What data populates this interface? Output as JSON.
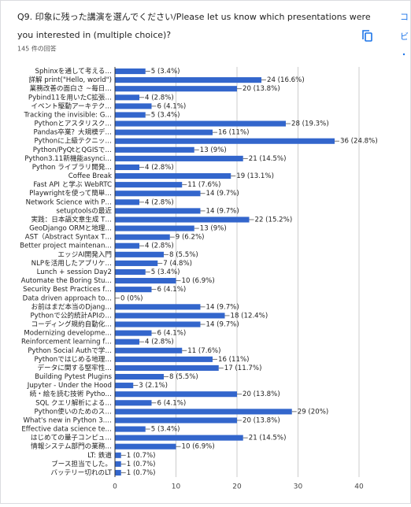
{
  "chart_data": {
    "type": "hbar",
    "title": [
      "Q9. 印象に残った講演を選んでください/Please let us know which presentations were",
      "you interested in (multiple choice)?"
    ],
    "subtitle": "145 件の回答",
    "side_texts": [
      "コ",
      "ビ"
    ],
    "color": "#3366cc",
    "categories": [
      "Sphinxを通して考える…",
      "詳解 print(\"Hello, world\")",
      "業務改善の面白さ ~毎日…",
      "Pybind11を用いたC拡張…",
      "イベント駆動アーキテク…",
      "Tracking the invisible: G…",
      "Pythonとアスタリスク…",
      "Pandas卒業？大規模デ…",
      "Pythonに上級テクニッ…",
      "Python/PyQtとQGISで…",
      "Python3.11新機能asynci…",
      "Python ライブラリ開発…",
      "Coffee Break",
      "Fast API と学ぶ WebRTC",
      "Playwrightを使って簡単…",
      "Network Science with P…",
      "setuptoolsの最近",
      "実践：日本語文章生成 T…",
      "GeoDjango ORMと地理…",
      "AST（Abstract Syntax T…",
      "Better project maintenan…",
      "エッジAI開発入門",
      "NLPを活用したアプリケ…",
      "Lunch + session Day2",
      "Automate the Boring Stu…",
      "Security Best Practices f…",
      "Data driven approach to…",
      "お前はまだ本当のDjang…",
      "Pythonで公的統計APIの…",
      "コーディング規約自動化…",
      "Modernizing developme…",
      "Reinforcement learning f…",
      "Python Social Authで学…",
      "Pythonではじめる地理…",
      "データに関する堅牢性…",
      "Building Pytest Plugins",
      "Jupyter - Under the Hood",
      "続・絵を読む技術 Pytho…",
      "SQL クエリ解析による…",
      "Python使いのためのス…",
      "What's new in Python 3.…",
      "Effective data science te…",
      "はじめての量子コンピュ…",
      "情報システム部門の業務…",
      "LT: 鉄道",
      "ブース担当でした。",
      "バッテリー切れのLT"
    ],
    "values": [
      5,
      24,
      20,
      4,
      6,
      5,
      28,
      16,
      36,
      13,
      21,
      4,
      19,
      11,
      14,
      4,
      14,
      22,
      13,
      9,
      4,
      8,
      7,
      5,
      10,
      6,
      0,
      14,
      18,
      14,
      6,
      4,
      11,
      16,
      17,
      8,
      3,
      20,
      6,
      29,
      20,
      5,
      21,
      10,
      1,
      1,
      1
    ],
    "value_labels": [
      "5 (3.4%)",
      "24 (16.6%)",
      "20 (13.8%)",
      "4 (2.8%)",
      "6 (4.1%)",
      "5 (3.4%)",
      "28 (19.3%)",
      "16 (11%)",
      "36 (24.8%)",
      "13 (9%)",
      "21 (14.5%)",
      "4 (2.8%)",
      "19 (13.1%)",
      "11 (7.6%)",
      "14 (9.7%)",
      "4 (2.8%)",
      "14 (9.7%)",
      "22 (15.2%)",
      "13 (9%)",
      "9 (6.2%)",
      "4 (2.8%)",
      "8 (5.5%)",
      "7 (4.8%)",
      "5 (3.4%)",
      "10 (6.9%)",
      "6 (4.1%)",
      "0 (0%)",
      "14 (9.7%)",
      "18 (12.4%)",
      "14 (9.7%)",
      "6 (4.1%)",
      "4 (2.8%)",
      "11 (7.6%)",
      "16 (11%)",
      "17 (11.7%)",
      "8 (5.5%)",
      "3 (2.1%)",
      "20 (13.8%)",
      "6 (4.1%)",
      "29 (20%)",
      "20 (13.8%)",
      "5 (3.4%)",
      "21 (14.5%)",
      "10 (6.9%)",
      "1 (0.7%)",
      "1 (0.7%)",
      "1 (0.7%)"
    ],
    "xlim": [
      0,
      40
    ],
    "xticks": [
      0,
      10,
      20,
      30,
      40
    ],
    "grid": true
  }
}
